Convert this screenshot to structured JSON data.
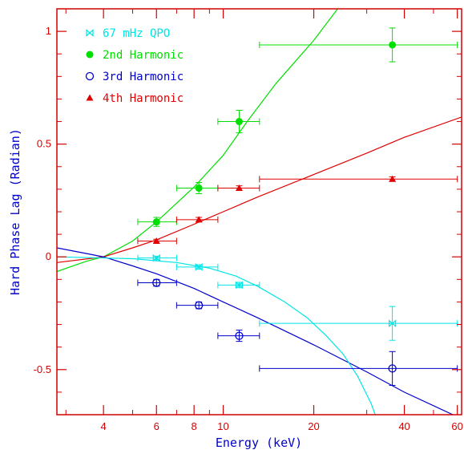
{
  "chart_data": {
    "type": "scatter",
    "xlabel": "Energy (keV)",
    "ylabel": "Hard Phase Lag (Radian)",
    "x_scale": "log",
    "xlim": [
      2.8,
      62
    ],
    "ylim": [
      -0.7,
      1.1
    ],
    "x_ticks": [
      4,
      6,
      8,
      10,
      20,
      40,
      60
    ],
    "y_ticks": [
      -0.5,
      0,
      0.5,
      1
    ],
    "y_tick_labels": [
      "-0.5",
      "0",
      "0.5",
      "1"
    ],
    "frame_color": "#d40000",
    "legend": {
      "placement": "top-left"
    },
    "series": [
      {
        "name": "67 mHz QPO",
        "color": "#00e5e5",
        "marker": "bowtie",
        "points": [
          {
            "x": 6.0,
            "y": -0.005,
            "xerr": [
              5.2,
              7.0
            ],
            "yerr": 0.008
          },
          {
            "x": 8.3,
            "y": -0.045,
            "xerr": [
              7.0,
              9.6
            ],
            "yerr": 0.01
          },
          {
            "x": 11.3,
            "y": -0.125,
            "xerr": [
              9.6,
              13.2
            ],
            "yerr": 0.012
          },
          {
            "x": 36.5,
            "y": -0.295,
            "xerr": [
              13.2,
              60.0
            ],
            "yerr": 0.075
          }
        ]
      },
      {
        "name": "2nd Harmonic",
        "color": "#00e000",
        "marker": "filled-circle",
        "points": [
          {
            "x": 6.0,
            "y": 0.155,
            "xerr": [
              5.2,
              7.0
            ],
            "yerr": 0.02
          },
          {
            "x": 8.3,
            "y": 0.305,
            "xerr": [
              7.0,
              9.6
            ],
            "yerr": 0.025
          },
          {
            "x": 11.3,
            "y": 0.6,
            "xerr": [
              9.6,
              13.2
            ],
            "yerr": 0.05
          },
          {
            "x": 36.5,
            "y": 0.94,
            "xerr": [
              13.2,
              60.0
            ],
            "yerr": 0.075
          }
        ]
      },
      {
        "name": "3rd Harmonic",
        "color": "#0000cc",
        "marker": "open-circle",
        "points": [
          {
            "x": 6.0,
            "y": -0.115,
            "xerr": [
              5.2,
              7.0
            ],
            "yerr": 0.015
          },
          {
            "x": 8.3,
            "y": -0.215,
            "xerr": [
              7.0,
              9.6
            ],
            "yerr": 0.015
          },
          {
            "x": 11.3,
            "y": -0.35,
            "xerr": [
              9.6,
              13.2
            ],
            "yerr": 0.025
          },
          {
            "x": 36.5,
            "y": -0.495,
            "xerr": [
              13.2,
              60.0
            ],
            "yerr": 0.075
          }
        ]
      },
      {
        "name": "4th Harmonic",
        "color": "#e00000",
        "marker": "filled-triangle",
        "points": [
          {
            "x": 6.0,
            "y": 0.07,
            "xerr": [
              5.2,
              7.0
            ],
            "yerr": 0.008
          },
          {
            "x": 8.3,
            "y": 0.165,
            "xerr": [
              7.0,
              9.6
            ],
            "yerr": 0.01
          },
          {
            "x": 11.3,
            "y": 0.305,
            "xerr": [
              9.6,
              13.2
            ],
            "yerr": 0.01
          },
          {
            "x": 36.5,
            "y": 0.345,
            "xerr": [
              13.2,
              60.0
            ],
            "yerr": 0.01
          }
        ]
      }
    ],
    "curves": [
      {
        "color": "#00e000",
        "points": [
          [
            2.8,
            -0.065
          ],
          [
            3.5,
            -0.02
          ],
          [
            4.0,
            0.0
          ],
          [
            5.0,
            0.07
          ],
          [
            6.0,
            0.155
          ],
          [
            8.0,
            0.31
          ],
          [
            10.0,
            0.45
          ],
          [
            12.0,
            0.6
          ],
          [
            15.0,
            0.77
          ],
          [
            20.0,
            0.96
          ],
          [
            24.0,
            1.1
          ]
        ]
      },
      {
        "color": "#e00000",
        "points": [
          [
            2.8,
            -0.025
          ],
          [
            4.0,
            0.0
          ],
          [
            5.0,
            0.04
          ],
          [
            6.0,
            0.075
          ],
          [
            8.0,
            0.145
          ],
          [
            10.0,
            0.2
          ],
          [
            13.0,
            0.265
          ],
          [
            20.0,
            0.365
          ],
          [
            30.0,
            0.46
          ],
          [
            40.0,
            0.53
          ],
          [
            62.0,
            0.62
          ]
        ]
      },
      {
        "color": "#0000cc",
        "points": [
          [
            2.8,
            0.04
          ],
          [
            3.5,
            0.015
          ],
          [
            4.0,
            0.0
          ],
          [
            5.0,
            -0.04
          ],
          [
            6.0,
            -0.075
          ],
          [
            8.0,
            -0.14
          ],
          [
            10.0,
            -0.2
          ],
          [
            13.0,
            -0.27
          ],
          [
            20.0,
            -0.39
          ],
          [
            30.0,
            -0.51
          ],
          [
            40.0,
            -0.6
          ],
          [
            58.0,
            -0.7
          ]
        ]
      },
      {
        "color": "#00e5e5",
        "points": [
          [
            2.8,
            0.0
          ],
          [
            5.0,
            -0.008
          ],
          [
            7.0,
            -0.025
          ],
          [
            9.0,
            -0.05
          ],
          [
            11.0,
            -0.085
          ],
          [
            13.0,
            -0.13
          ],
          [
            16.0,
            -0.2
          ],
          [
            19.0,
            -0.27
          ],
          [
            22.0,
            -0.35
          ],
          [
            25.0,
            -0.43
          ],
          [
            28.0,
            -0.53
          ],
          [
            31.0,
            -0.65
          ],
          [
            32.0,
            -0.7
          ]
        ]
      }
    ]
  }
}
